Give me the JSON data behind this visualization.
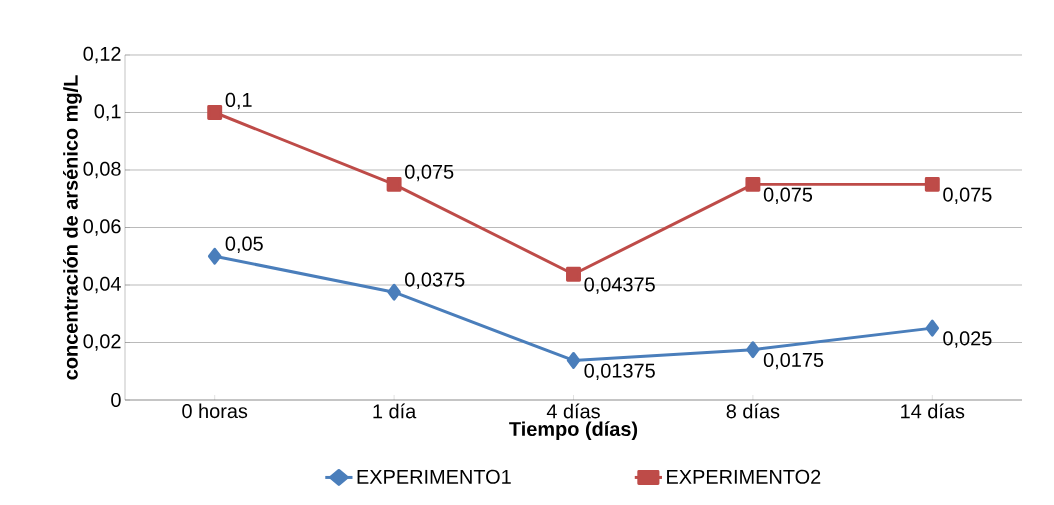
{
  "chart_data": {
    "type": "line",
    "xlabel": "Tiempo (días)",
    "ylabel": "concentración de arsénico  mg/L",
    "categories": [
      "0 horas",
      "1 día",
      "4 días",
      "8 días",
      "14 días"
    ],
    "series": [
      {
        "name": "EXPERIMENTO1",
        "color": "#4a7ebb",
        "marker": "diamond",
        "values": [
          0.05,
          0.0375,
          0.01375,
          0.0175,
          0.025
        ],
        "value_labels": [
          "0,05",
          "0,0375",
          "0,01375",
          "0,0175",
          "0,025"
        ]
      },
      {
        "name": "EXPERIMENTO2",
        "color": "#be4b48",
        "marker": "square",
        "values": [
          0.1,
          0.075,
          0.04375,
          0.075,
          0.075
        ],
        "value_labels": [
          "0,1",
          "0,075",
          "0,04375",
          "0,075",
          "0,075"
        ]
      }
    ],
    "ylim": [
      0,
      0.12
    ],
    "yticks": [
      {
        "value": 0,
        "label": "0"
      },
      {
        "value": 0.02,
        "label": "0,02"
      },
      {
        "value": 0.04,
        "label": "0,04"
      },
      {
        "value": 0.06,
        "label": "0,06"
      },
      {
        "value": 0.08,
        "label": "0,08"
      },
      {
        "value": 0.1,
        "label": "0,1"
      },
      {
        "value": 0.12,
        "label": "0,12"
      }
    ],
    "grid": "y",
    "legend": "bottom",
    "line_style": "solid"
  }
}
